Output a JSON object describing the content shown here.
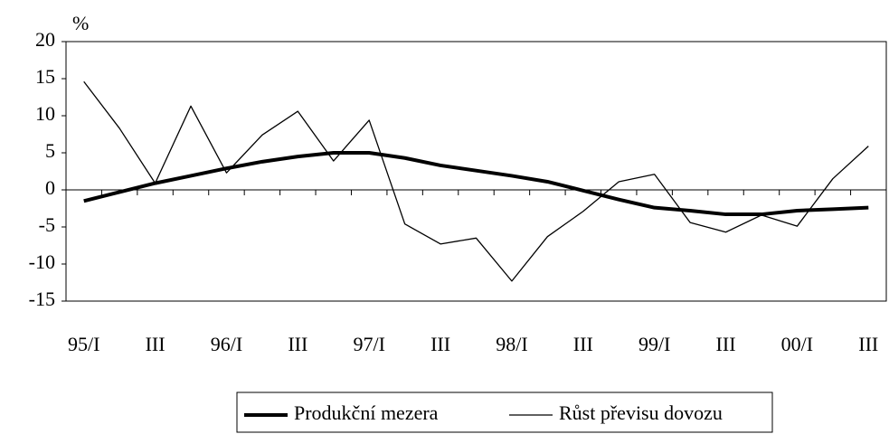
{
  "chart_data": {
    "type": "line",
    "y_label": "%",
    "categories": [
      "95/I",
      null,
      "III",
      null,
      "96/I",
      null,
      "III",
      null,
      "97/I",
      null,
      "III",
      null,
      "98/I",
      null,
      "III",
      null,
      "99/I",
      null,
      "III",
      null,
      "00/I",
      null,
      "III"
    ],
    "series": [
      {
        "name": "Produkční mezera",
        "color": "#000000",
        "width": 4,
        "values": [
          -1.5,
          -0.3,
          0.9,
          1.9,
          2.9,
          3.8,
          4.5,
          5.0,
          5.0,
          4.3,
          3.3,
          2.6,
          1.9,
          1.1,
          -0.1,
          -1.3,
          -2.4,
          -2.8,
          -3.3,
          -3.3,
          -2.8,
          -2.6,
          -2.4
        ]
      },
      {
        "name": "Růst převisu dovozu",
        "color": "#000000",
        "width": 1.3,
        "values": [
          14.6,
          8.3,
          0.9,
          11.3,
          2.3,
          7.4,
          10.6,
          3.9,
          9.4,
          -4.6,
          -7.3,
          -6.5,
          -12.3,
          -6.3,
          -2.9,
          1.1,
          2.1,
          -4.4,
          -5.7,
          -3.4,
          -4.9,
          1.5,
          5.9
        ]
      }
    ],
    "ylim": [
      -15,
      20
    ],
    "yticks": [
      -15,
      -10,
      -5,
      0,
      5,
      10,
      15,
      20
    ],
    "legend": "bottom"
  }
}
